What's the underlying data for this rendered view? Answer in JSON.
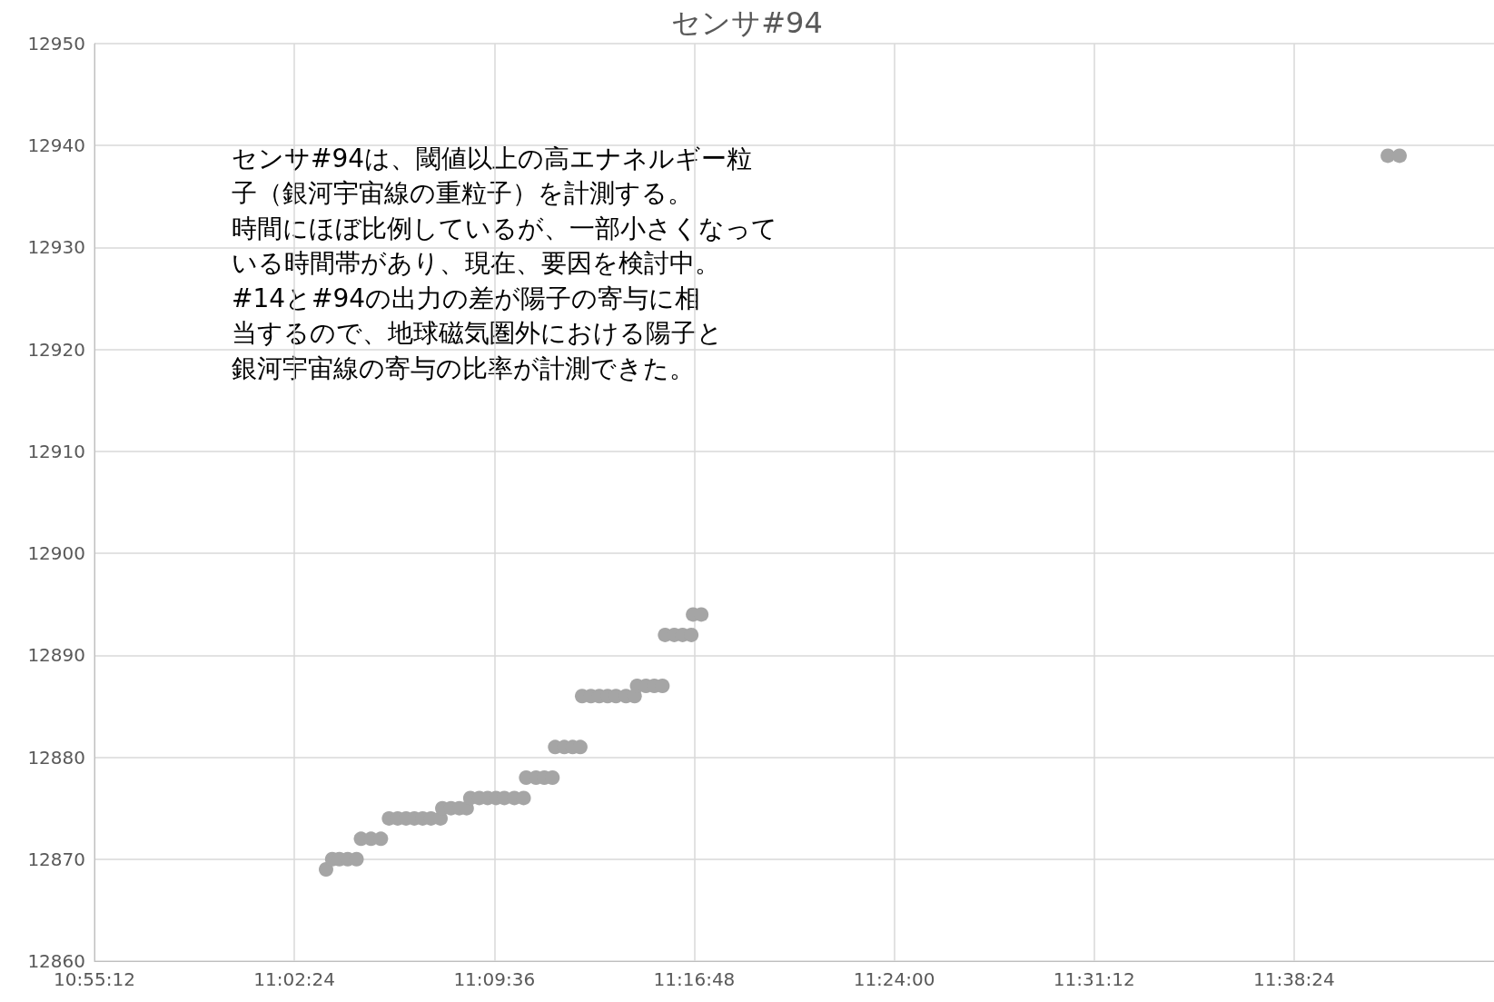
{
  "chart_data": {
    "type": "scatter",
    "title": "センサ#94",
    "color": "#a5a5a5",
    "marker": "circle",
    "grid": true,
    "x": [
      11.059,
      11.0627,
      11.067,
      11.072,
      11.0773,
      11.08,
      11.086,
      11.0919,
      11.0968,
      11.102,
      11.107,
      11.112,
      11.117,
      11.122,
      11.1277,
      11.1288,
      11.134,
      11.139,
      11.1434,
      11.1456,
      11.151,
      11.156,
      11.161,
      11.166,
      11.172,
      11.1776,
      11.1791,
      11.185,
      11.19,
      11.1949,
      11.1965,
      11.202,
      11.207,
      11.2116,
      11.2127,
      11.218,
      11.223,
      11.228,
      11.233,
      11.239,
      11.2442,
      11.2457,
      11.251,
      11.256,
      11.2609,
      11.2625,
      11.268,
      11.273,
      11.2782,
      11.2793,
      11.2842,
      11.6963,
      11.7033
    ],
    "values": [
      12869,
      12870,
      12870,
      12870,
      12870,
      12872,
      12872,
      12872,
      12874,
      12874,
      12874,
      12874,
      12874,
      12874,
      12874,
      12875,
      12875,
      12875,
      12875,
      12876,
      12876,
      12876,
      12876,
      12876,
      12876,
      12876,
      12878,
      12878,
      12878,
      12878,
      12881,
      12881,
      12881,
      12881,
      12886,
      12886,
      12886,
      12886,
      12886,
      12886,
      12886,
      12887,
      12887,
      12887,
      12887,
      12892,
      12892,
      12892,
      12892,
      12894,
      12894,
      12939,
      12939
    ],
    "xlim": [
      10.92,
      11.76
    ],
    "xticks": [
      {
        "value": 10.92,
        "label": "10:55:12"
      },
      {
        "value": 11.04,
        "label": "11:02:24"
      },
      {
        "value": 11.16,
        "label": "11:09:36"
      },
      {
        "value": 11.28,
        "label": "11:16:48"
      },
      {
        "value": 11.4,
        "label": "11:24:00"
      },
      {
        "value": 11.52,
        "label": "11:31:12"
      },
      {
        "value": 11.64,
        "label": "11:38:24"
      }
    ],
    "ylim": [
      12860,
      12950
    ],
    "yticks": [
      12860,
      12870,
      12880,
      12890,
      12900,
      12910,
      12920,
      12930,
      12940,
      12950
    ],
    "annotations": [
      "センサ#94は、閾値以上の高エナネルギー粒",
      "子（銀河宇宙線の重粒子）を計測する。",
      "時間にほぼ比例しているが、一部小さくなって",
      "いる時間帯があり、現在、要因を検討中。",
      "#14と#94の出力の差が陽子の寄与に相",
      "当するので、地球磁気圏外における陽子と",
      "銀河宇宙線の寄与の比率が計測できた。"
    ]
  }
}
